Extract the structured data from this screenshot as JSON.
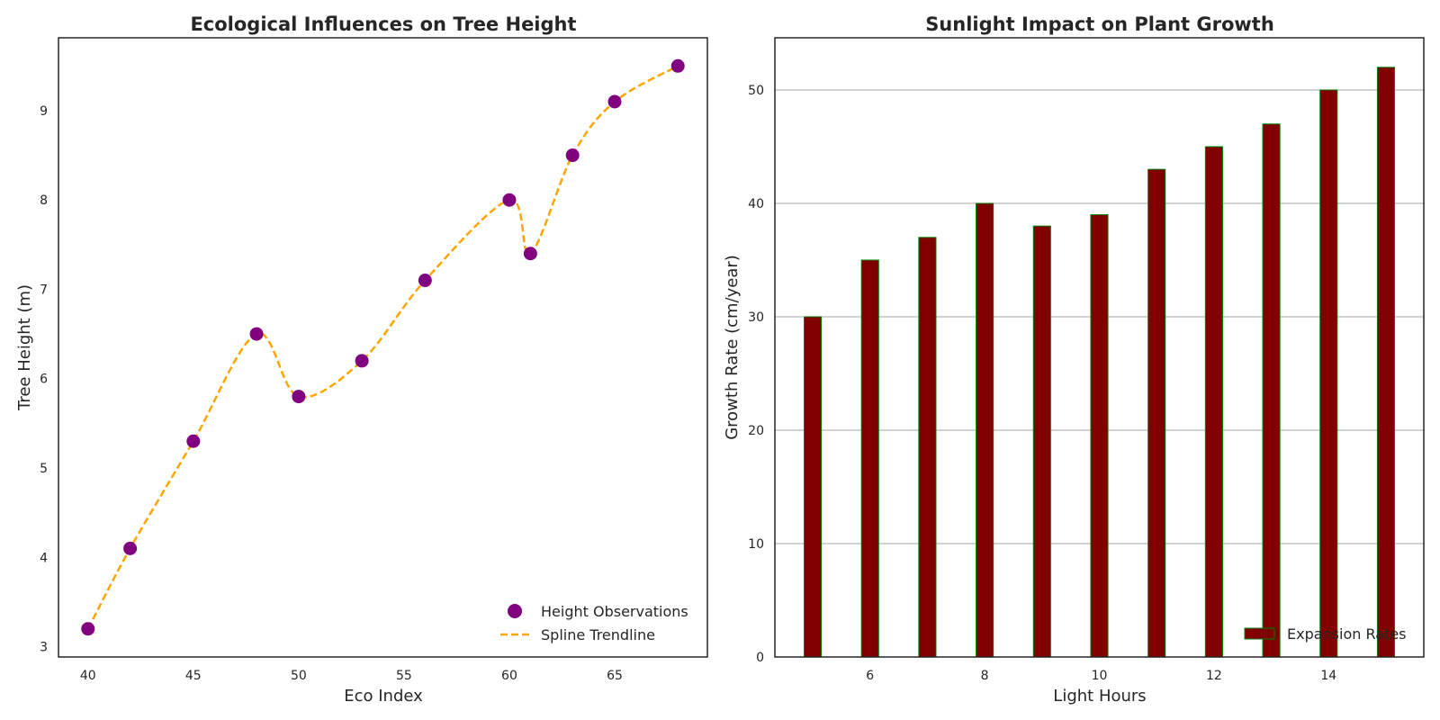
{
  "chart_data": [
    {
      "type": "scatter",
      "title": "Ecological Influences on Tree Height",
      "xlabel": "Eco Index",
      "ylabel": "Tree Height (m)",
      "xlim": [
        38.6,
        69.4
      ],
      "ylim": [
        2.885,
        9.815
      ],
      "xticks": [
        40,
        45,
        50,
        55,
        60,
        65
      ],
      "yticks": [
        3,
        4,
        5,
        6,
        7,
        8,
        9
      ],
      "grid": false,
      "legend_position": "lower-right",
      "series": [
        {
          "name": "Height Observations",
          "type": "scatter",
          "color": "#800080",
          "x": [
            40,
            42,
            45,
            48,
            50,
            53,
            56,
            60,
            61,
            63,
            65,
            68
          ],
          "y": [
            3.2,
            4.1,
            5.3,
            6.5,
            5.8,
            6.2,
            7.1,
            8.0,
            7.4,
            8.5,
            9.1,
            9.5
          ]
        },
        {
          "name": "Spline Trendline",
          "type": "line",
          "style": "dashed",
          "color": "#FFA500",
          "x": [
            40,
            42,
            45,
            48,
            50,
            53,
            56,
            60,
            61,
            63,
            65,
            68
          ],
          "y": [
            3.2,
            4.1,
            5.3,
            6.5,
            5.8,
            6.2,
            7.1,
            8.0,
            7.4,
            8.5,
            9.1,
            9.5
          ]
        }
      ]
    },
    {
      "type": "bar",
      "title": "Sunlight Impact on Plant Growth",
      "xlabel": "Light Hours",
      "ylabel": "Growth Rate (cm/year)",
      "xlim": [
        4.34,
        15.66
      ],
      "ylim": [
        0,
        54.6
      ],
      "xticks": [
        6,
        8,
        10,
        12,
        14
      ],
      "yticks": [
        0,
        10,
        20,
        30,
        40,
        50
      ],
      "grid": "horizontal",
      "legend_position": "lower-right",
      "bar_width": 0.3,
      "series": [
        {
          "name": "Expansion Rates",
          "fill": "#800000",
          "edge": "#008000",
          "x": [
            5,
            6,
            7,
            8,
            9,
            10,
            11,
            12,
            13,
            14,
            15
          ],
          "values": [
            30,
            35,
            37,
            40,
            38,
            39,
            43,
            45,
            47,
            50,
            52
          ]
        }
      ]
    }
  ]
}
